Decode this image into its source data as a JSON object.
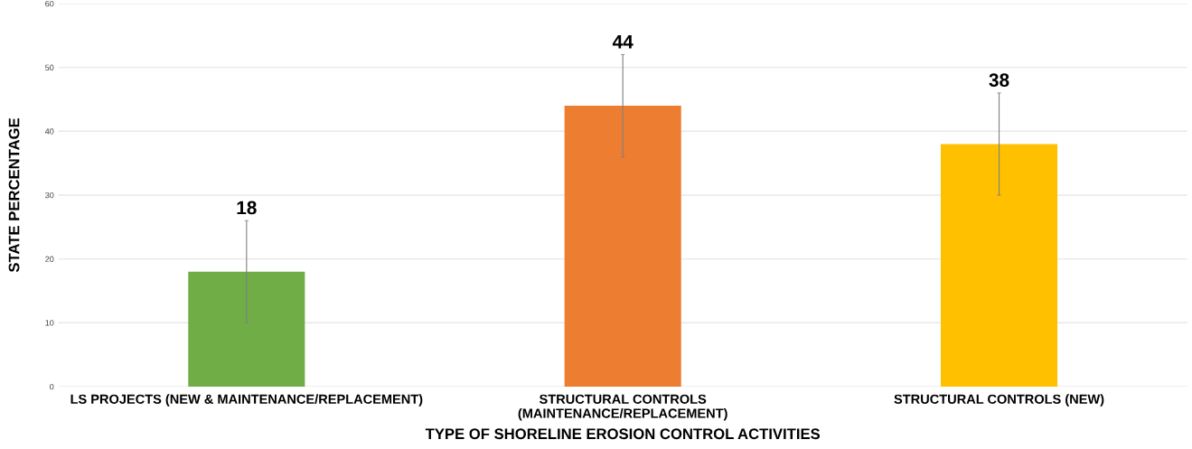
{
  "chart_data": {
    "type": "bar",
    "xlabel": "TYPE OF SHORELINE EROSION CONTROL ACTIVITIES",
    "ylabel": "STATE PERCENTAGE",
    "categories": [
      "LS PROJECTS (NEW & MAINTENANCE/REPLACEMENT)",
      "STRUCTURAL CONTROLS\n(MAINTENANCE/REPLACEMENT)",
      "STRUCTURAL CONTROLS (NEW)"
    ],
    "values": [
      18,
      44,
      38
    ],
    "colors": [
      "#70ad47",
      "#ed7d31",
      "#ffc000"
    ],
    "errors": [
      8,
      8,
      8
    ],
    "ylim": [
      0,
      60
    ],
    "yticks": [
      0,
      10,
      20,
      30,
      40,
      50,
      60
    ],
    "grid": "y",
    "data_labels": true
  }
}
